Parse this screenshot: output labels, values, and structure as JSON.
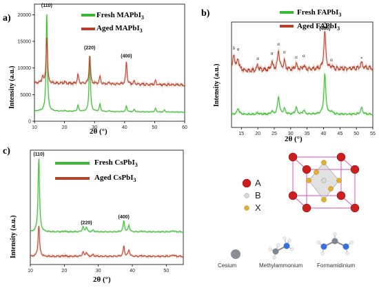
{
  "chart_data": [
    {
      "type": "line",
      "panel_label": "a)",
      "xlabel": "2θ (°)",
      "ylabel": "Intensity (a.u.)",
      "xlim": [
        10,
        60
      ],
      "ylim": [
        0,
        22000
      ],
      "xticks": [
        10,
        20,
        30,
        40,
        50,
        60
      ],
      "yticks": [
        0,
        5000,
        10000,
        15000,
        20000
      ],
      "series": [
        {
          "name": "Fresh MAPbI3",
          "color": "#3cb832",
          "x": [
            10,
            14.1,
            20,
            24.5,
            28.4,
            31.8,
            35,
            40.6,
            43.2,
            50.3,
            53.3,
            60
          ],
          "y": [
            1900,
            20500,
            2000,
            3000,
            12500,
            3200,
            2000,
            2800,
            2200,
            2400,
            2100,
            1700
          ]
        },
        {
          "name": "Aged MAPbI3",
          "color": "#b5412a",
          "x": [
            10,
            12.7,
            14.1,
            20,
            24.5,
            28.4,
            31.8,
            35,
            40.6,
            43.2,
            50.3,
            60
          ],
          "y": [
            7200,
            8500,
            16000,
            7400,
            8800,
            12500,
            8400,
            7300,
            11000,
            7500,
            7600,
            6800
          ]
        }
      ],
      "peak_labels": [
        {
          "text": "(110)",
          "x": 14.1,
          "y": 21500
        },
        {
          "text": "(220)",
          "x": 28.4,
          "y": 13500
        },
        {
          "text": "(400)",
          "x": 40.6,
          "y": 12000
        }
      ]
    },
    {
      "type": "line",
      "panel_label": "b)",
      "xlabel": "2θ (°)",
      "ylabel": "Intensity (a.u.)",
      "xlim": [
        12,
        55
      ],
      "xticks": [
        15,
        20,
        25,
        30,
        35,
        40,
        45,
        50,
        55
      ],
      "series": [
        {
          "name": "Fresh FAPbI3",
          "color": "#3cb832",
          "x": [
            12,
            14,
            20,
            24.3,
            26.3,
            28.1,
            31.7,
            34,
            40.4,
            42.4,
            51.6,
            55
          ],
          "y": [
            1,
            1.45,
            1.1,
            1.2,
            2.3,
            1.4,
            1.5,
            1.3,
            4.0,
            1.2,
            1.5,
            1
          ]
        },
        {
          "name": "Aged FAPbI3",
          "color": "#b5412a",
          "x": [
            12,
            12.7,
            14,
            20,
            24.3,
            26.3,
            28.1,
            31.7,
            34,
            40.4,
            42.4,
            51.6,
            55
          ],
          "y": [
            4.3,
            5.5,
            5.2,
            4.7,
            4.9,
            5.8,
            5.0,
            4.8,
            4.7,
            7.2,
            4.6,
            4.9,
            4.5
          ]
        }
      ],
      "peak_markers": [
        {
          "text": "δ",
          "x": 12.7
        },
        {
          "text": "α",
          "x": 14
        },
        {
          "text": "α",
          "x": 20
        },
        {
          "text": "α",
          "x": 24.3
        },
        {
          "text": "α",
          "x": 26.3
        },
        {
          "text": "α",
          "x": 28.1
        },
        {
          "text": "α",
          "x": 31.7
        },
        {
          "text": "α",
          "x": 34
        },
        {
          "text": "*",
          "x": 40.4
        },
        {
          "text": "α",
          "x": 40.4
        },
        {
          "text": "α",
          "x": 42.4
        },
        {
          "text": "*",
          "x": 51.6
        }
      ],
      "peak_labels": [
        {
          "text": "(400)",
          "x": 40.4
        }
      ]
    },
    {
      "type": "line",
      "panel_label": "c)",
      "xlabel": "2θ (°)",
      "ylabel": "Intensity (a.u.)",
      "xlim": [
        10,
        55
      ],
      "xticks": [
        10,
        20,
        30,
        40,
        50
      ],
      "series": [
        {
          "name": "Fresh CsPbI3",
          "color": "#3cb832",
          "x": [
            10,
            12.5,
            20,
            25.5,
            26.5,
            28.5,
            37.5,
            39,
            43,
            52,
            55
          ],
          "y": [
            1,
            10,
            1.1,
            1.6,
            1.6,
            1.2,
            2.3,
            1.8,
            1.1,
            1.15,
            1
          ]
        },
        {
          "name": "Aged CsPbI3",
          "color": "#b5412a",
          "x": [
            10,
            12.5,
            20,
            25.5,
            26.5,
            28.5,
            37.5,
            39,
            43,
            52,
            55
          ],
          "y": [
            -2.0,
            1.8,
            -1.9,
            -1.5,
            -1.5,
            -1.8,
            -0.8,
            -1.2,
            -1.9,
            -1.8,
            -2.0
          ]
        }
      ],
      "peak_labels": [
        {
          "text": "(110)",
          "x": 12.5
        },
        {
          "text": "(220)",
          "x": 26.5
        },
        {
          "text": "(400)",
          "x": 37.5
        }
      ]
    }
  ],
  "legends": {
    "a_fresh": "Fresh MAPbI",
    "a_aged": "Aged  MAPbI",
    "b_fresh": "Fresh FAPbI",
    "b_aged": "Aged  FAPbI",
    "c_fresh": "Fresh  CsPbI",
    "c_aged": "Aged  CsPbI",
    "subscript": "3"
  },
  "structure": {
    "legend": [
      "A",
      "B",
      "X"
    ],
    "molecules": [
      "Cesium",
      "Methylammonium",
      "Formamidinium"
    ],
    "colors": {
      "A": "#cc1f1f",
      "B": "#d8d8d8",
      "X": "#e0b030",
      "bond": "#e070c0"
    }
  }
}
